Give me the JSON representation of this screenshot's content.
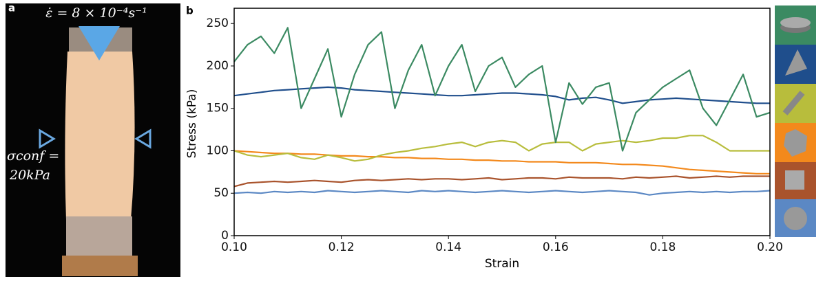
{
  "photo": {
    "label": "a",
    "strain_rate": "ε̇ = 8 × 10⁻⁴s⁻¹",
    "confining": "σconf =",
    "pressure": "20kPa"
  },
  "chart_data": {
    "type": "line",
    "panel_label": "b",
    "x_label": "Strain",
    "y_label": "Stress (kPa)",
    "xlim": [
      0.1,
      0.2
    ],
    "ylim": [
      0,
      268
    ],
    "xticks": [
      {
        "value": 0.1,
        "label": "0.10"
      },
      0.12,
      0.14,
      0.16,
      0.18,
      {
        "value": 0.2,
        "label": "0.20"
      }
    ],
    "yticks": [
      0,
      50,
      100,
      150,
      200,
      250
    ],
    "x": [
      0.1,
      0.1025,
      0.105,
      0.1075,
      0.11,
      0.1125,
      0.115,
      0.1175,
      0.12,
      0.1225,
      0.125,
      0.1275,
      0.13,
      0.1325,
      0.135,
      0.1375,
      0.14,
      0.1425,
      0.145,
      0.1475,
      0.15,
      0.1525,
      0.155,
      0.1575,
      0.16,
      0.1625,
      0.165,
      0.1675,
      0.17,
      0.1725,
      0.175,
      0.1775,
      0.18,
      0.1825,
      0.185,
      0.1875,
      0.19,
      0.1925,
      0.195,
      0.1975,
      0.2
    ],
    "series": [
      {
        "color": "#3b8a62",
        "values": [
          205,
          225,
          235,
          215,
          245,
          150,
          185,
          220,
          140,
          190,
          225,
          240,
          150,
          195,
          225,
          165,
          200,
          225,
          170,
          200,
          210,
          175,
          190,
          200,
          110,
          180,
          155,
          175,
          180,
          100,
          145,
          160,
          175,
          185,
          195,
          150,
          130,
          160,
          190,
          140,
          145
        ]
      },
      {
        "color": "#1f4e8c",
        "values": [
          165,
          167,
          169,
          171,
          172,
          173,
          174,
          175,
          174,
          172,
          171,
          170,
          169,
          168,
          167,
          166,
          165,
          165,
          166,
          167,
          168,
          168,
          167,
          166,
          164,
          160,
          162,
          163,
          160,
          156,
          158,
          160,
          161,
          162,
          161,
          160,
          159,
          158,
          157,
          156,
          156
        ]
      },
      {
        "color": "#b8bd3c",
        "values": [
          100,
          95,
          93,
          95,
          97,
          92,
          90,
          95,
          92,
          88,
          90,
          95,
          98,
          100,
          103,
          105,
          108,
          110,
          105,
          110,
          112,
          110,
          100,
          108,
          110,
          110,
          100,
          108,
          110,
          112,
          110,
          112,
          115,
          115,
          118,
          118,
          110,
          100,
          100,
          100,
          100
        ]
      },
      {
        "color": "#f3891c",
        "values": [
          100,
          99,
          98,
          97,
          97,
          96,
          96,
          95,
          94,
          94,
          93,
          93,
          92,
          92,
          91,
          91,
          90,
          90,
          89,
          89,
          88,
          88,
          87,
          87,
          87,
          86,
          86,
          86,
          85,
          84,
          84,
          83,
          82,
          80,
          78,
          77,
          76,
          75,
          74,
          73,
          73
        ]
      },
      {
        "color": "#a9532c",
        "values": [
          58,
          62,
          63,
          64,
          63,
          64,
          65,
          64,
          63,
          65,
          66,
          65,
          66,
          67,
          66,
          67,
          67,
          66,
          67,
          68,
          66,
          67,
          68,
          68,
          67,
          69,
          68,
          68,
          68,
          67,
          69,
          68,
          69,
          70,
          68,
          69,
          70,
          69,
          70,
          70,
          70
        ]
      },
      {
        "color": "#5b88c4",
        "values": [
          50,
          51,
          50,
          52,
          51,
          52,
          51,
          53,
          52,
          51,
          52,
          53,
          52,
          51,
          53,
          52,
          53,
          52,
          51,
          52,
          53,
          52,
          51,
          52,
          53,
          52,
          51,
          52,
          53,
          52,
          51,
          48,
          50,
          51,
          52,
          51,
          52,
          51,
          52,
          52,
          53
        ]
      }
    ]
  }
}
